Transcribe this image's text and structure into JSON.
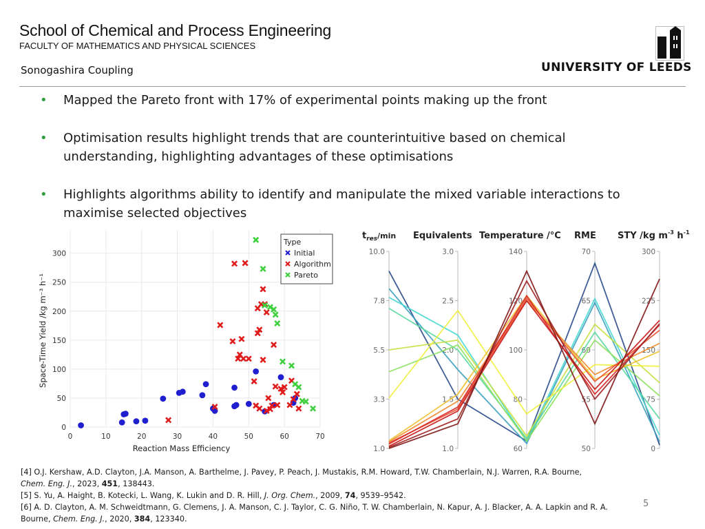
{
  "header": {
    "school": "School of Chemical and Process Engineering",
    "faculty": "FACULTY OF MATHEMATICS AND PHYSICAL SCIENCES",
    "topic": "Sonogashira Coupling",
    "university": "UNIVERSITY OF LEEDS"
  },
  "bullets": [
    {
      "lines": [
        "Mapped the Pareto front with 17% of experimental points making up the front"
      ]
    },
    {
      "lines": [
        "Optimisation results highlight trends that are counterintuitive based on chemical",
        "understanding, highlighting advantages of these optimisations"
      ]
    },
    {
      "lines": [
        "Highlights algorithms ability to identify and manipulate the mixed variable interactions to",
        "maximise selected objectives"
      ]
    }
  ],
  "colors": {
    "bullet": "#2e9e3e",
    "initial": "#1f1fd0",
    "algorithm": "#e01b1b",
    "pareto": "#3fcf3f"
  },
  "chart_data": [
    {
      "type": "scatter",
      "xlabel": "Reaction Mass Efficiency",
      "ylabel": "Space-Time Yield /kg m⁻³ h⁻¹",
      "xlim": [
        0,
        70
      ],
      "ylim": [
        0,
        340
      ],
      "xticks": [
        0,
        10,
        20,
        30,
        40,
        50,
        60,
        70
      ],
      "yticks": [
        0,
        50,
        100,
        150,
        200,
        250,
        300
      ],
      "legend_title": "Type",
      "legend_position": "top-right",
      "grid": true,
      "series": [
        {
          "name": "Initial",
          "color": "#1f1fd0",
          "points": [
            [
              3,
              3
            ],
            [
              14.5,
              8
            ],
            [
              15,
              22
            ],
            [
              15.5,
              23
            ],
            [
              18.5,
              10
            ],
            [
              21,
              11
            ],
            [
              26,
              49
            ],
            [
              30.5,
              59
            ],
            [
              31.5,
              61
            ],
            [
              37,
              55
            ],
            [
              38,
              74
            ],
            [
              40,
              32
            ],
            [
              40.5,
              28
            ],
            [
              46,
              36
            ],
            [
              46.5,
              38
            ],
            [
              46,
              68
            ],
            [
              50,
              40
            ],
            [
              52,
              96
            ],
            [
              54.5,
              27
            ],
            [
              57,
              38
            ],
            [
              59,
              86
            ],
            [
              62.5,
              42
            ],
            [
              63,
              50
            ]
          ]
        },
        {
          "name": "Algorithm",
          "color": "#e01b1b",
          "points": [
            [
              27.5,
              12
            ],
            [
              40.5,
              35
            ],
            [
              42,
              176
            ],
            [
              45.5,
              148
            ],
            [
              46,
              282
            ],
            [
              47,
              118
            ],
            [
              47.5,
              125
            ],
            [
              48,
              152
            ],
            [
              48.5,
              118
            ],
            [
              49,
              283
            ],
            [
              50,
              118
            ],
            [
              51.5,
              79
            ],
            [
              52,
              37
            ],
            [
              52.5,
              205
            ],
            [
              52.5,
              162
            ],
            [
              53,
              168
            ],
            [
              53,
              32
            ],
            [
              53.5,
              212
            ],
            [
              54,
              238
            ],
            [
              54,
              116
            ],
            [
              54.5,
              212
            ],
            [
              55,
              28
            ],
            [
              55,
              198
            ],
            [
              55.5,
              50
            ],
            [
              56,
              31
            ],
            [
              56.5,
              37
            ],
            [
              57,
              142
            ],
            [
              57.5,
              70
            ],
            [
              58,
              38
            ],
            [
              59,
              66
            ],
            [
              59.5,
              60
            ],
            [
              60,
              69
            ],
            [
              61.5,
              38
            ],
            [
              62,
              80
            ],
            [
              62.5,
              48
            ],
            [
              63.5,
              57
            ],
            [
              64,
              32
            ]
          ]
        },
        {
          "name": "Pareto",
          "color": "#3fcf3f",
          "points": [
            [
              52,
              323
            ],
            [
              54,
              273
            ],
            [
              54.5,
              210
            ],
            [
              56,
              207
            ],
            [
              57,
              203
            ],
            [
              57.5,
              194
            ],
            [
              58,
              179
            ],
            [
              59.5,
              113
            ],
            [
              62,
              106
            ],
            [
              63,
              74
            ],
            [
              64,
              69
            ],
            [
              65,
              45
            ],
            [
              66,
              44
            ],
            [
              68,
              32
            ]
          ]
        }
      ]
    },
    {
      "type": "parallel",
      "axes": [
        {
          "label": "t",
          "sub": "res",
          "unit": "/min",
          "min": 1.0,
          "max": 10.0,
          "ticks": [
            "10.0",
            "7.8",
            "5.5",
            "3.3",
            "1.0"
          ]
        },
        {
          "label": "Equivalents",
          "min": 1.0,
          "max": 3.0,
          "ticks": [
            "3.0",
            "2.5",
            "2.0",
            "1.5",
            "1.0"
          ]
        },
        {
          "label": "Temperature /°C",
          "min": 60,
          "max": 140,
          "ticks": [
            "140",
            "120",
            "100",
            "80",
            "60"
          ]
        },
        {
          "label": "RME",
          "min": 50,
          "max": 70,
          "ticks": [
            "70",
            "65",
            "60",
            "55",
            "50"
          ]
        },
        {
          "label": "STY /kg m",
          "sup1": "-3",
          "mid": " h",
          "sup2": "-1",
          "min": 0,
          "max": 300,
          "ticks": [
            "300",
            "225",
            "150",
            "75",
            "0"
          ]
        }
      ],
      "series": [
        {
          "color": "#2a4a8a",
          "values": [
            9.1,
            1.5,
            63,
            68.8,
            5
          ]
        },
        {
          "color": "#3aa0c0",
          "values": [
            8.3,
            1.8,
            62,
            64.8,
            10
          ]
        },
        {
          "color": "#48d8d0",
          "values": [
            7.9,
            2.15,
            63,
            65.2,
            20
          ]
        },
        {
          "color": "#5ad8a0",
          "values": [
            7.4,
            2.0,
            64,
            61.8,
            45
          ]
        },
        {
          "color": "#8ee060",
          "values": [
            4.5,
            2.05,
            63,
            61.0,
            80
          ]
        },
        {
          "color": "#c8e040",
          "values": [
            5.5,
            2.1,
            65,
            62.6,
            100
          ]
        },
        {
          "color": "#f0f040",
          "values": [
            3.3,
            2.4,
            74,
            58.5,
            125
          ]
        },
        {
          "color": "#f0c030",
          "values": [
            1.35,
            1.55,
            122,
            57.0,
            148
          ]
        },
        {
          "color": "#f08830",
          "values": [
            1.3,
            1.48,
            120,
            57.5,
            160
          ]
        },
        {
          "color": "#e85030",
          "values": [
            1.25,
            1.4,
            121,
            56.8,
            180
          ]
        },
        {
          "color": "#d82828",
          "values": [
            1.2,
            1.42,
            122,
            55.5,
            188
          ]
        },
        {
          "color": "#c81818",
          "values": [
            1.1,
            1.38,
            120,
            56.0,
            195
          ]
        },
        {
          "color": "#a02020",
          "values": [
            1.05,
            1.3,
            128,
            55.0,
            190
          ]
        },
        {
          "color": "#801818",
          "values": [
            1.0,
            1.25,
            132,
            52.5,
            258
          ]
        }
      ]
    }
  ],
  "references": [
    {
      "parts": [
        {
          "t": "[4] O.J. Kershaw, A.D. Clayton, J.A. Manson, A. Barthelme, J. Pavey, P. Peach, J. Mustakis, R.M. Howard, T.W. Chamberlain, N.J. Warren, R.A. Bourne,"
        }
      ]
    },
    {
      "parts": [
        {
          "t": "Chem. Eng. J.",
          "i": true
        },
        {
          "t": ", 2023, "
        },
        {
          "t": "451",
          "b": true
        },
        {
          "t": ", 138443."
        }
      ]
    },
    {
      "parts": [
        {
          "t": "[5] S. Yu, A. Haight, B. Kotecki, L. Wang, K. Lukin and D. R. Hill, "
        },
        {
          "t": "J. Org. Chem.",
          "i": true
        },
        {
          "t": ", 2009, "
        },
        {
          "t": "74",
          "b": true
        },
        {
          "t": ", 9539–9542."
        }
      ]
    },
    {
      "parts": [
        {
          "t": "[6] A. D. Clayton, A. M. Schweidtmann, G. Clemens, J. A. Manson, C. J. Taylor, C. G. Niño, T. W. Chamberlain, N. Kapur, A. J. Blacker, A. A. Lapkin and R. A."
        }
      ]
    },
    {
      "parts": [
        {
          "t": "Bourne, "
        },
        {
          "t": "Chem. Eng. J.",
          "i": true
        },
        {
          "t": ", 2020, "
        },
        {
          "t": "384",
          "b": true
        },
        {
          "t": ", 123340."
        }
      ]
    }
  ],
  "page_number": "5"
}
